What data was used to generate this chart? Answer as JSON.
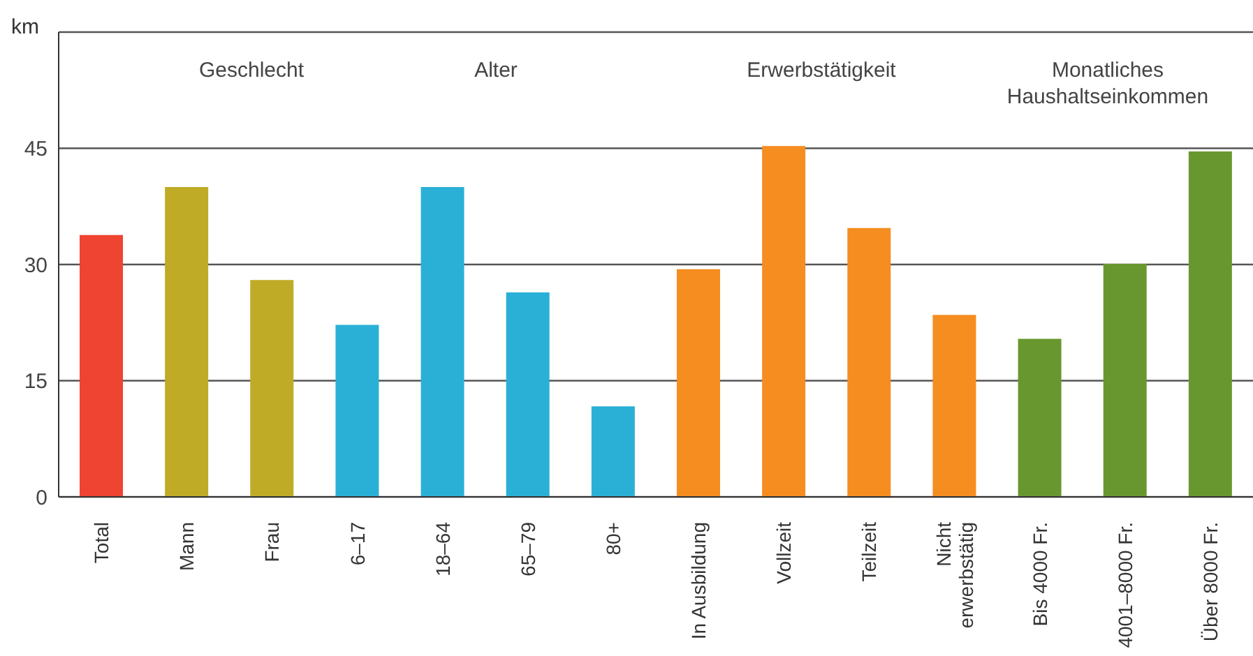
{
  "chart_data": {
    "type": "bar",
    "ylabel": "km",
    "categories": [
      "Total",
      "Mann",
      "Frau",
      "6–17",
      "18–64",
      "65–79",
      "80+",
      "In Ausbildung",
      "Vollzeit",
      "Teilzeit",
      "Nicht erwerbstätig",
      "Bis 4000 Fr.",
      "4001–8000 Fr.",
      "Über 8000 Fr."
    ],
    "values": [
      33.8,
      40,
      28,
      22.2,
      40,
      26.4,
      11.7,
      29.4,
      45.3,
      34.7,
      23.5,
      20.4,
      30.1,
      44.6
    ],
    "colors": [
      "#ee4431",
      "#c0ab26",
      "#c0ab26",
      "#2ab0d6",
      "#2ab0d6",
      "#2ab0d6",
      "#2ab0d6",
      "#f58d20",
      "#f58d20",
      "#f58d20",
      "#f58d20",
      "#69972f",
      "#69972f",
      "#69972f"
    ],
    "ylim": [
      0,
      60
    ],
    "yticks": [
      0,
      15,
      30,
      45,
      {
        "value": 60,
        "label": null
      }
    ],
    "grid": "y",
    "annotations": [
      "Geschlecht",
      "Alter",
      "Erwerbstätigkeit",
      "Monatliches\nHaushaltseinkommen"
    ]
  }
}
